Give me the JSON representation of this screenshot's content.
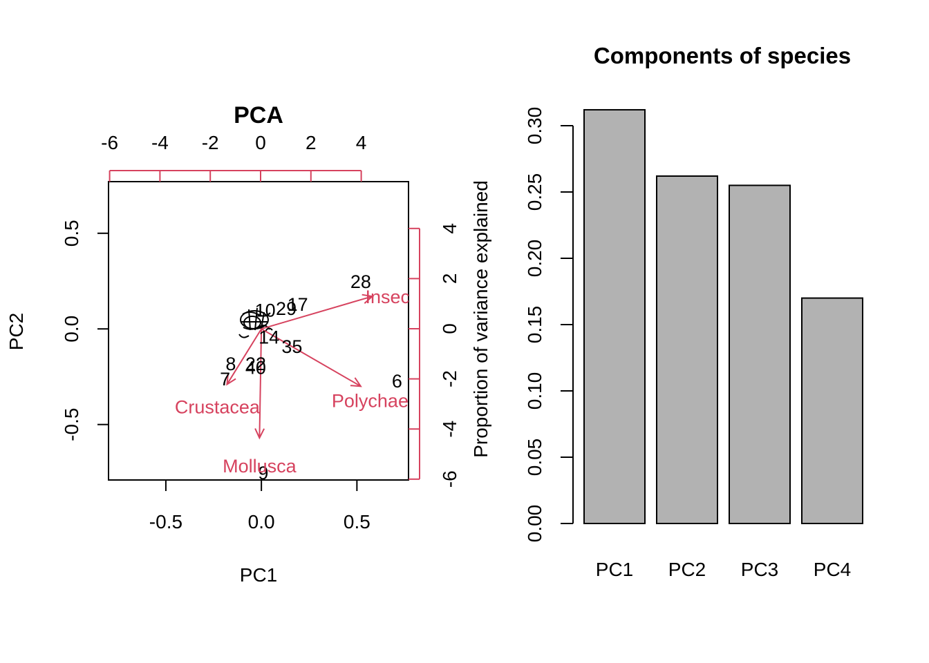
{
  "chart_data": [
    {
      "type": "scatter",
      "subtype": "biplot",
      "title": "PCA",
      "xlabel": "PC1",
      "ylabel": "PC2",
      "xlim": [
        -0.8,
        0.77
      ],
      "ylim": [
        -0.79,
        0.77
      ],
      "x_ticks": [
        "-0.5",
        "0.0",
        "0.5"
      ],
      "y_ticks": [
        "-0.5",
        "0.0",
        "0.5"
      ],
      "top_ticks": [
        "-6",
        "-4",
        "-2",
        "0",
        "2",
        "4"
      ],
      "right_ticks": [
        "-6",
        "-4",
        "-2",
        "0",
        "2",
        "4"
      ],
      "right_label": "Proportion of variance explained",
      "secondary_axis_color": "#D6425E",
      "points": [
        {
          "label": "28",
          "x": 0.52,
          "y": 0.25
        },
        {
          "label": "17",
          "x": 0.19,
          "y": 0.13
        },
        {
          "label": "29",
          "x": 0.13,
          "y": 0.11
        },
        {
          "label": "35",
          "x": 0.16,
          "y": -0.09
        },
        {
          "label": "6",
          "x": 0.71,
          "y": -0.27
        },
        {
          "label": "8",
          "x": -0.16,
          "y": -0.18
        },
        {
          "label": "22",
          "x": -0.03,
          "y": -0.18
        },
        {
          "label": "40",
          "x": -0.03,
          "y": -0.2
        },
        {
          "label": "7",
          "x": -0.19,
          "y": -0.26
        },
        {
          "label": "9",
          "x": 0.01,
          "y": -0.75
        },
        {
          "label": "14",
          "x": 0.04,
          "y": -0.04
        },
        {
          "label": "10",
          "x": 0.02,
          "y": 0.1
        }
      ],
      "loadings": [
        {
          "name": "Insecta",
          "x": 0.58,
          "y": 0.17
        },
        {
          "name": "Polychaeta",
          "x": 0.52,
          "y": -0.3
        },
        {
          "name": "Crustacea",
          "x": -0.18,
          "y": -0.29
        },
        {
          "name": "Mollusca",
          "x": -0.01,
          "y": -0.57
        }
      ]
    },
    {
      "type": "bar",
      "title": "Components of species",
      "categories": [
        "PC1",
        "PC2",
        "PC3",
        "PC4"
      ],
      "values": [
        0.312,
        0.262,
        0.255,
        0.17
      ],
      "ylabel": "",
      "ylim": [
        0,
        0.32
      ],
      "y_ticks": [
        "0.00",
        "0.05",
        "0.10",
        "0.15",
        "0.20",
        "0.25",
        "0.30"
      ],
      "bar_color": "#B2B2B2"
    }
  ]
}
